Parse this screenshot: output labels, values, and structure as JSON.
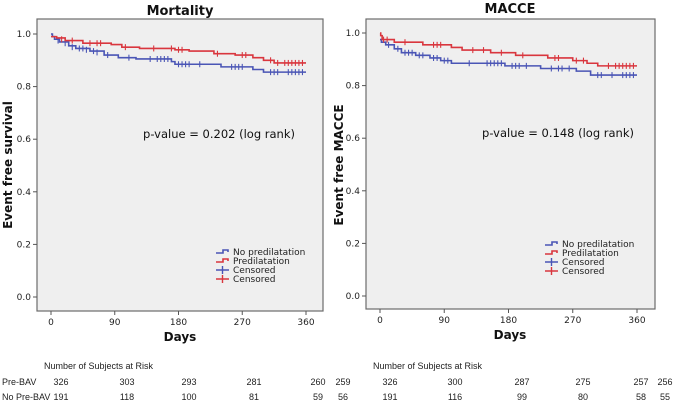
{
  "chart_data": [
    {
      "type": "line",
      "subtype": "kaplan-meier",
      "title": "Mortality",
      "xlabel": "Days",
      "ylabel": "Event free survival",
      "xlim": [
        0,
        360
      ],
      "ylim": [
        0,
        1.0
      ],
      "xticks": [
        "0",
        "90",
        "180",
        "270",
        "360"
      ],
      "yticks": [
        "0.0",
        "0.2",
        "0.4",
        "0.6",
        "0.8",
        "1.0"
      ],
      "grid": false,
      "annotation": "p-value = 0.202 (log rank)",
      "legend_position": "bottom-right",
      "legend": [
        {
          "label": "No predilatation",
          "kind": "step",
          "color": "#4a55b5"
        },
        {
          "label": "Predilatation",
          "kind": "step",
          "color": "#d9363e"
        },
        {
          "label": "Censored",
          "kind": "cross",
          "color": "#4a55b5"
        },
        {
          "label": "Censored",
          "kind": "cross",
          "color": "#d9363e"
        }
      ],
      "series": [
        {
          "name": "No predilatation",
          "color": "#4a55b5",
          "steps": [
            [
              0,
              1.0
            ],
            [
              2,
              0.99
            ],
            [
              5,
              0.98
            ],
            [
              12,
              0.97
            ],
            [
              25,
              0.955
            ],
            [
              35,
              0.945
            ],
            [
              55,
              0.935
            ],
            [
              75,
              0.92
            ],
            [
              95,
              0.91
            ],
            [
              120,
              0.905
            ],
            [
              170,
              0.895
            ],
            [
              175,
              0.885
            ],
            [
              240,
              0.875
            ],
            [
              285,
              0.865
            ],
            [
              300,
              0.855
            ],
            [
              360,
              0.855
            ]
          ],
          "censored": [
            [
              10,
              0.975
            ],
            [
              20,
              0.965
            ],
            [
              30,
              0.95
            ],
            [
              40,
              0.945
            ],
            [
              45,
              0.945
            ],
            [
              50,
              0.94
            ],
            [
              60,
              0.935
            ],
            [
              65,
              0.93
            ],
            [
              80,
              0.92
            ],
            [
              110,
              0.91
            ],
            [
              140,
              0.905
            ],
            [
              150,
              0.905
            ],
            [
              155,
              0.905
            ],
            [
              160,
              0.905
            ],
            [
              165,
              0.905
            ],
            [
              180,
              0.885
            ],
            [
              185,
              0.885
            ],
            [
              190,
              0.885
            ],
            [
              195,
              0.885
            ],
            [
              210,
              0.885
            ],
            [
              255,
              0.875
            ],
            [
              260,
              0.875
            ],
            [
              265,
              0.875
            ],
            [
              270,
              0.875
            ],
            [
              310,
              0.855
            ],
            [
              315,
              0.855
            ],
            [
              320,
              0.855
            ],
            [
              335,
              0.855
            ],
            [
              340,
              0.855
            ],
            [
              345,
              0.855
            ],
            [
              350,
              0.855
            ],
            [
              355,
              0.855
            ]
          ]
        },
        {
          "name": "Predilatation",
          "color": "#d9363e",
          "steps": [
            [
              0,
              0.99
            ],
            [
              8,
              0.985
            ],
            [
              20,
              0.975
            ],
            [
              45,
              0.965
            ],
            [
              85,
              0.96
            ],
            [
              100,
              0.95
            ],
            [
              125,
              0.945
            ],
            [
              175,
              0.94
            ],
            [
              195,
              0.935
            ],
            [
              230,
              0.925
            ],
            [
              260,
              0.92
            ],
            [
              285,
              0.91
            ],
            [
              300,
              0.9
            ],
            [
              315,
              0.89
            ],
            [
              360,
              0.89
            ]
          ],
          "censored": [
            [
              15,
              0.98
            ],
            [
              30,
              0.975
            ],
            [
              55,
              0.965
            ],
            [
              65,
              0.965
            ],
            [
              70,
              0.965
            ],
            [
              105,
              0.95
            ],
            [
              145,
              0.945
            ],
            [
              170,
              0.945
            ],
            [
              180,
              0.94
            ],
            [
              185,
              0.94
            ],
            [
              235,
              0.925
            ],
            [
              270,
              0.92
            ],
            [
              275,
              0.92
            ],
            [
              310,
              0.9
            ],
            [
              320,
              0.89
            ],
            [
              330,
              0.89
            ],
            [
              335,
              0.89
            ],
            [
              340,
              0.89
            ],
            [
              345,
              0.89
            ],
            [
              350,
              0.89
            ],
            [
              355,
              0.89
            ]
          ]
        }
      ]
    },
    {
      "type": "line",
      "subtype": "kaplan-meier",
      "title": "MACCE",
      "xlabel": "Days",
      "ylabel": "Event free MACCE",
      "xlim": [
        0,
        360
      ],
      "ylim": [
        0,
        1.0
      ],
      "xticks": [
        "0",
        "90",
        "180",
        "270",
        "360"
      ],
      "yticks": [
        "0.0",
        "0.2",
        "0.4",
        "0.6",
        "0.8",
        "1.0"
      ],
      "grid": false,
      "annotation": "p-value = 0.148 (log rank)",
      "legend_position": "bottom-right",
      "legend": [
        {
          "label": "No predilatation",
          "kind": "step",
          "color": "#4a55b5"
        },
        {
          "label": "Predilatation",
          "kind": "step",
          "color": "#d9363e"
        },
        {
          "label": "Censored",
          "kind": "cross",
          "color": "#4a55b5"
        },
        {
          "label": "Censored",
          "kind": "cross",
          "color": "#d9363e"
        }
      ],
      "series": [
        {
          "name": "No predilatation",
          "color": "#4a55b5",
          "steps": [
            [
              0,
              0.975
            ],
            [
              2,
              0.965
            ],
            [
              8,
              0.955
            ],
            [
              20,
              0.94
            ],
            [
              30,
              0.925
            ],
            [
              50,
              0.915
            ],
            [
              70,
              0.905
            ],
            [
              85,
              0.895
            ],
            [
              100,
              0.885
            ],
            [
              175,
              0.875
            ],
            [
              225,
              0.865
            ],
            [
              275,
              0.855
            ],
            [
              295,
              0.84
            ],
            [
              360,
              0.84
            ]
          ],
          "censored": [
            [
              12,
              0.955
            ],
            [
              25,
              0.94
            ],
            [
              35,
              0.925
            ],
            [
              40,
              0.925
            ],
            [
              45,
              0.925
            ],
            [
              55,
              0.915
            ],
            [
              60,
              0.915
            ],
            [
              75,
              0.905
            ],
            [
              80,
              0.905
            ],
            [
              90,
              0.895
            ],
            [
              95,
              0.895
            ],
            [
              125,
              0.885
            ],
            [
              150,
              0.885
            ],
            [
              155,
              0.885
            ],
            [
              160,
              0.885
            ],
            [
              165,
              0.885
            ],
            [
              170,
              0.885
            ],
            [
              185,
              0.875
            ],
            [
              190,
              0.875
            ],
            [
              195,
              0.875
            ],
            [
              205,
              0.875
            ],
            [
              240,
              0.865
            ],
            [
              250,
              0.865
            ],
            [
              255,
              0.865
            ],
            [
              265,
              0.865
            ],
            [
              305,
              0.84
            ],
            [
              310,
              0.84
            ],
            [
              325,
              0.84
            ],
            [
              340,
              0.84
            ],
            [
              345,
              0.84
            ],
            [
              350,
              0.84
            ],
            [
              355,
              0.84
            ]
          ]
        },
        {
          "name": "Predilatation",
          "color": "#d9363e",
          "steps": [
            [
              0,
              1.0
            ],
            [
              1,
              0.99
            ],
            [
              3,
              0.975
            ],
            [
              20,
              0.965
            ],
            [
              60,
              0.955
            ],
            [
              100,
              0.945
            ],
            [
              115,
              0.935
            ],
            [
              155,
              0.925
            ],
            [
              190,
              0.915
            ],
            [
              235,
              0.905
            ],
            [
              270,
              0.895
            ],
            [
              290,
              0.885
            ],
            [
              305,
              0.875
            ],
            [
              360,
              0.875
            ]
          ],
          "censored": [
            [
              5,
              0.975
            ],
            [
              10,
              0.975
            ],
            [
              35,
              0.965
            ],
            [
              75,
              0.955
            ],
            [
              80,
              0.955
            ],
            [
              85,
              0.955
            ],
            [
              130,
              0.935
            ],
            [
              145,
              0.935
            ],
            [
              170,
              0.925
            ],
            [
              200,
              0.915
            ],
            [
              245,
              0.905
            ],
            [
              250,
              0.905
            ],
            [
              275,
              0.895
            ],
            [
              285,
              0.895
            ],
            [
              320,
              0.875
            ],
            [
              330,
              0.875
            ],
            [
              335,
              0.875
            ],
            [
              340,
              0.875
            ],
            [
              345,
              0.875
            ],
            [
              350,
              0.875
            ],
            [
              355,
              0.875
            ]
          ]
        }
      ]
    }
  ],
  "risk_tables": [
    {
      "heading": "Number of Subjects at Risk",
      "rows": [
        {
          "label": "Pre-BAV",
          "values": [
            "326",
            "303",
            "293",
            "281",
            "260",
            "259"
          ]
        },
        {
          "label": "No Pre-BAV",
          "values": [
            "191",
            "118",
            "100",
            "81",
            "59",
            "56"
          ]
        }
      ]
    },
    {
      "heading": "Number of Subjects at Risk",
      "rows": [
        {
          "label": "",
          "values": [
            "326",
            "300",
            "287",
            "275",
            "257",
            "256"
          ]
        },
        {
          "label": "",
          "values": [
            "191",
            "116",
            "99",
            "80",
            "58",
            "55"
          ]
        }
      ]
    }
  ]
}
